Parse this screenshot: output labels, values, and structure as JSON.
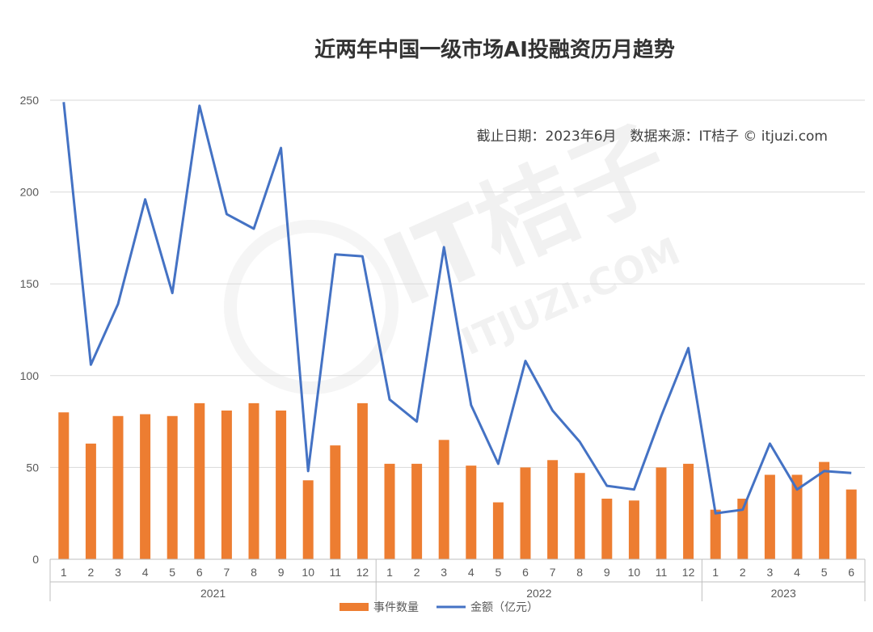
{
  "watermark": {
    "main": "IT桔子",
    "sub": "ITJUZI.COM"
  },
  "note": "截止日期：2023年6月　数据来源：IT桔子 © itjuzi.com",
  "colors": {
    "bar": "#ED7D31",
    "line": "#4472C4",
    "grid": "#D9D9D9",
    "axis": "#BFBFBF"
  },
  "chart_data": {
    "type": "bar+line",
    "title": "近两年中国一级市场AI投融资历月趋势",
    "ylim": [
      0,
      250
    ],
    "yticks": [
      0,
      50,
      100,
      150,
      200,
      250
    ],
    "grid": true,
    "legend_position": "bottom",
    "categories": [
      "1",
      "2",
      "3",
      "4",
      "5",
      "6",
      "7",
      "8",
      "9",
      "10",
      "11",
      "12",
      "1",
      "2",
      "3",
      "4",
      "5",
      "6",
      "7",
      "8",
      "9",
      "10",
      "11",
      "12",
      "1",
      "2",
      "3",
      "4",
      "5",
      "6"
    ],
    "groups": [
      {
        "label": "2021",
        "count": 12
      },
      {
        "label": "2022",
        "count": 12
      },
      {
        "label": "2023",
        "count": 6
      }
    ],
    "series": [
      {
        "name": "事件数量",
        "type": "bar",
        "values": [
          80,
          63,
          78,
          79,
          78,
          85,
          81,
          85,
          81,
          43,
          62,
          85,
          52,
          52,
          65,
          51,
          31,
          50,
          54,
          47,
          33,
          32,
          50,
          52,
          27,
          33,
          46,
          46,
          53,
          38
        ]
      },
      {
        "name": "金额（亿元）",
        "type": "line",
        "values": [
          249,
          106,
          139,
          196,
          145,
          247,
          188,
          180,
          224,
          48,
          166,
          165,
          87,
          75,
          170,
          84,
          52,
          108,
          81,
          64,
          40,
          38,
          78,
          115,
          25,
          27,
          63,
          38,
          48,
          47
        ]
      }
    ]
  }
}
